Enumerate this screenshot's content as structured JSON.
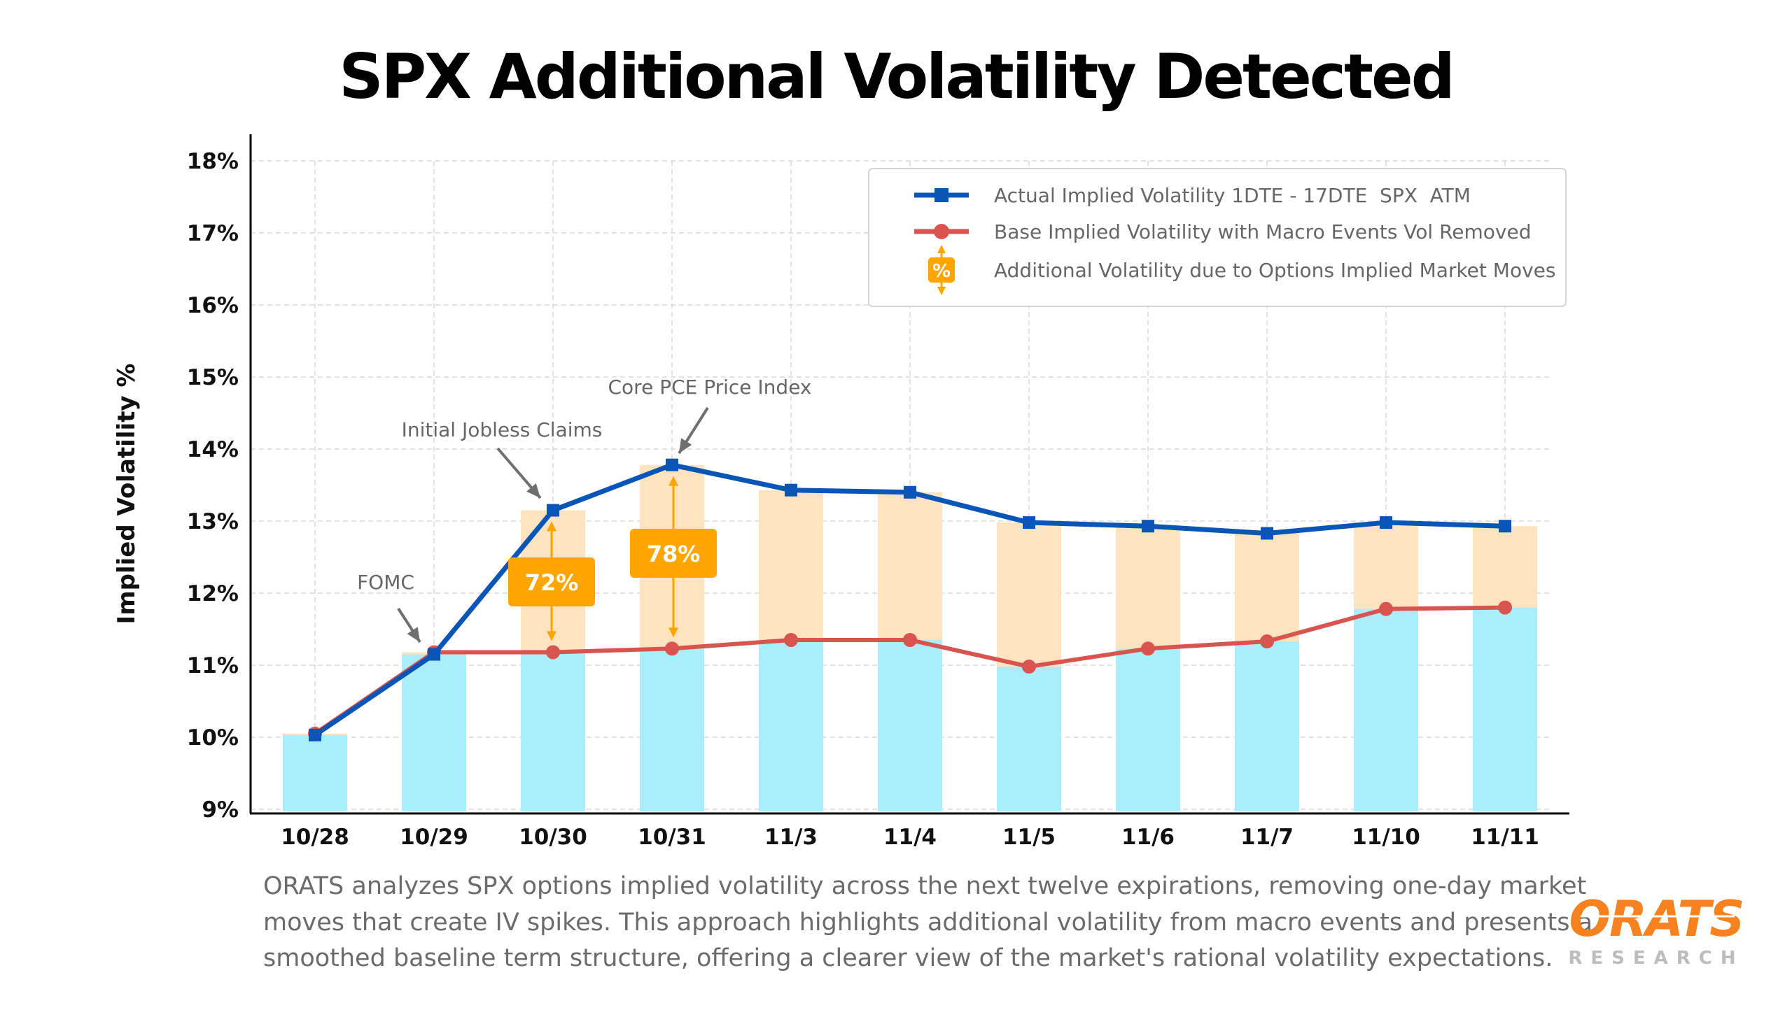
{
  "chart_data": {
    "type": "line",
    "title": "SPX Additional Volatility Detected",
    "xlabel": "",
    "ylabel": "Implied Volatility %",
    "categories": [
      "10/28",
      "10/29",
      "10/30",
      "10/31",
      "11/3",
      "11/4",
      "11/5",
      "11/6",
      "11/7",
      "11/10",
      "11/11"
    ],
    "ylim": [
      9,
      18
    ],
    "yticks": [
      "9%",
      "10%",
      "11%",
      "12%",
      "13%",
      "14%",
      "15%",
      "16%",
      "17%",
      "18%"
    ],
    "grid": true,
    "legend_position": "top-right",
    "series": [
      {
        "name": "Actual Implied Volatility 1DTE - 17DTE  SPX  ATM",
        "color": "#0a56b8",
        "marker": "square",
        "values": [
          10.03,
          11.15,
          13.15,
          13.78,
          13.43,
          13.4,
          12.98,
          12.93,
          12.83,
          12.98,
          12.93
        ]
      },
      {
        "name": "Base Implied Volatility with Macro Events Vol Removed",
        "color": "#d9534f",
        "marker": "circle",
        "values": [
          10.05,
          11.18,
          11.18,
          11.23,
          11.35,
          11.35,
          10.98,
          11.23,
          11.33,
          11.78,
          11.8
        ]
      }
    ],
    "bars": {
      "base_color": "#aaeefc",
      "additional_color": "#fde3bf"
    },
    "additional_legend": {
      "label": "Additional Volatility due to Options Implied Market Moves",
      "icon_text": "%",
      "color": "#ffa500"
    },
    "badges": [
      {
        "category": "10/30",
        "text": "72%"
      },
      {
        "category": "10/31",
        "text": "78%"
      }
    ],
    "annotations": [
      {
        "category": "10/29",
        "text": "FOMC"
      },
      {
        "category": "10/30",
        "text": "Initial Jobless Claims"
      },
      {
        "category": "10/31",
        "text": "Core PCE Price Index"
      }
    ]
  },
  "caption": [
    "ORATS analyzes SPX options implied volatility across the next twelve expirations, removing one-day market",
    "moves that create IV spikes. This approach highlights additional volatility from macro events and presents a",
    "smoothed baseline term structure, offering a clearer view of the market's rational volatility expectations."
  ],
  "logo": {
    "name": "ORATS",
    "subtitle": "RESEARCH",
    "color": "#f5821f"
  }
}
